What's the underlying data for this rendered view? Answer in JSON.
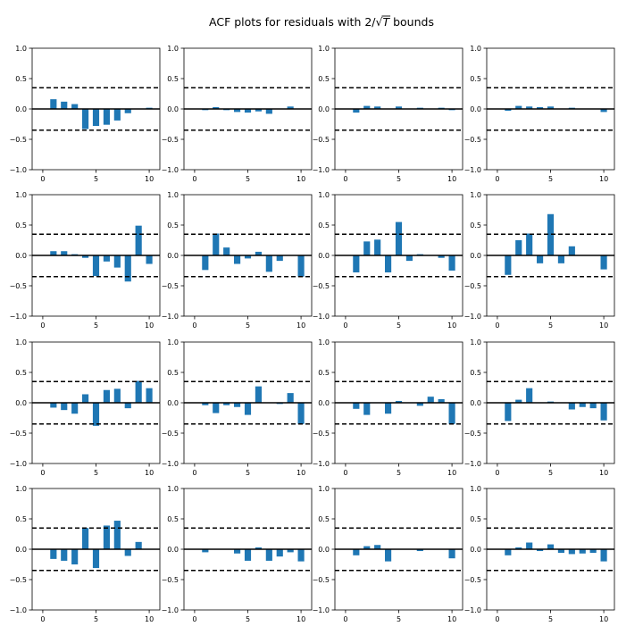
{
  "figure": {
    "title_prefix": "ACF plots for residuals with 2/",
    "title_symbol": "T",
    "title_suffix": " bounds"
  },
  "style": {
    "bar_color": "#1f77b4",
    "bound_color": "#000000",
    "zero_color": "#000000"
  },
  "chart_data": {
    "type": "bar",
    "layout": "4x4 grid",
    "xticks": [
      0,
      5,
      10
    ],
    "yticks": [
      -1.0,
      -0.5,
      0.0,
      0.5,
      1.0
    ],
    "ytick_labels": [
      "−1.0",
      "−0.5",
      "0.0",
      "0.5",
      "1.0"
    ],
    "xlim": [
      -1,
      11
    ],
    "ylim": [
      -1.0,
      1.0
    ],
    "bound": 0.35,
    "lags": [
      1,
      2,
      3,
      4,
      5,
      6,
      7,
      8,
      9,
      10
    ],
    "panels": [
      {
        "row": 1,
        "col": 1,
        "values": [
          0.16,
          0.12,
          0.08,
          -0.33,
          -0.28,
          -0.26,
          -0.19,
          -0.07,
          0.0,
          0.02
        ]
      },
      {
        "row": 1,
        "col": 2,
        "values": [
          -0.02,
          0.03,
          -0.02,
          -0.05,
          -0.06,
          -0.04,
          -0.08,
          0.0,
          0.04,
          0.0
        ]
      },
      {
        "row": 1,
        "col": 3,
        "values": [
          -0.06,
          0.05,
          0.04,
          0.0,
          0.04,
          0.0,
          0.02,
          0.0,
          0.02,
          -0.02
        ]
      },
      {
        "row": 1,
        "col": 4,
        "values": [
          -0.03,
          0.05,
          0.04,
          0.03,
          0.04,
          0.0,
          0.02,
          0.0,
          0.0,
          -0.05
        ]
      },
      {
        "row": 2,
        "col": 1,
        "values": [
          0.07,
          0.07,
          0.02,
          -0.04,
          -0.34,
          -0.1,
          -0.2,
          -0.43,
          0.49,
          -0.14
        ]
      },
      {
        "row": 2,
        "col": 2,
        "values": [
          -0.24,
          0.36,
          0.13,
          -0.14,
          -0.05,
          0.06,
          -0.27,
          -0.09,
          0.0,
          -0.35
        ]
      },
      {
        "row": 2,
        "col": 3,
        "values": [
          -0.28,
          0.23,
          0.26,
          -0.28,
          0.55,
          -0.09,
          0.02,
          0.0,
          -0.04,
          -0.25
        ]
      },
      {
        "row": 2,
        "col": 4,
        "values": [
          -0.32,
          0.25,
          0.36,
          -0.13,
          0.68,
          -0.13,
          0.15,
          0.0,
          0.0,
          -0.23
        ]
      },
      {
        "row": 3,
        "col": 1,
        "values": [
          -0.08,
          -0.12,
          -0.18,
          0.14,
          -0.38,
          0.21,
          0.23,
          -0.09,
          0.36,
          0.24
        ]
      },
      {
        "row": 3,
        "col": 2,
        "values": [
          -0.04,
          -0.17,
          -0.04,
          -0.07,
          -0.2,
          0.27,
          0.0,
          -0.02,
          0.16,
          -0.35
        ]
      },
      {
        "row": 3,
        "col": 3,
        "values": [
          -0.1,
          -0.2,
          0.0,
          -0.18,
          0.03,
          0.0,
          -0.05,
          0.1,
          0.06,
          -0.35
        ]
      },
      {
        "row": 3,
        "col": 4,
        "values": [
          -0.3,
          0.05,
          0.24,
          0.0,
          0.02,
          0.0,
          -0.11,
          -0.07,
          -0.09,
          -0.29
        ]
      },
      {
        "row": 4,
        "col": 1,
        "values": [
          -0.16,
          -0.19,
          -0.25,
          0.35,
          -0.31,
          0.39,
          0.47,
          -0.11,
          0.12,
          0.0
        ]
      },
      {
        "row": 4,
        "col": 2,
        "values": [
          -0.05,
          0.0,
          0.0,
          -0.07,
          -0.19,
          0.03,
          -0.19,
          -0.12,
          -0.05,
          -0.2
        ]
      },
      {
        "row": 4,
        "col": 3,
        "values": [
          -0.1,
          0.05,
          0.07,
          -0.2,
          0.0,
          0.0,
          -0.03,
          0.0,
          0.0,
          -0.15
        ]
      },
      {
        "row": 4,
        "col": 4,
        "values": [
          -0.1,
          0.03,
          0.11,
          -0.03,
          0.08,
          -0.06,
          -0.08,
          -0.07,
          -0.06,
          -0.2
        ]
      }
    ]
  }
}
